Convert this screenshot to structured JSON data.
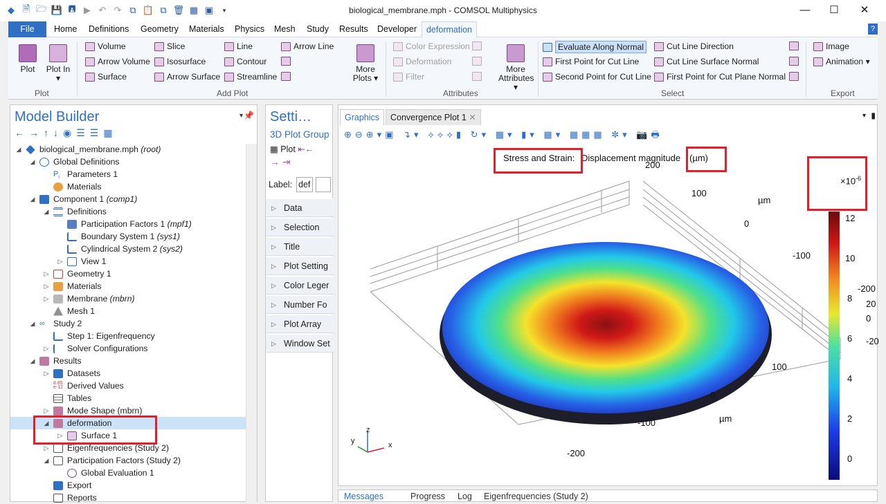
{
  "window": {
    "title": "biological_membrane.mph - COMSOL Multiphysics",
    "minimize": "—",
    "maximize": "☐",
    "close": "✕"
  },
  "menu": {
    "file": "File",
    "tabs": [
      "Home",
      "Definitions",
      "Geometry",
      "Materials",
      "Physics",
      "Mesh",
      "Study",
      "Results",
      "Developer"
    ],
    "active": "deformation",
    "help": "?"
  },
  "ribbon": {
    "plot_group": {
      "label": "Plot",
      "plot": "Plot",
      "plot_in": "Plot In ▾"
    },
    "add_plot": {
      "label": "Add Plot",
      "items": [
        "Volume",
        "Arrow Volume",
        "Surface",
        "Slice",
        "Isosurface",
        "Arrow Surface",
        "Line",
        "Contour",
        "Streamline",
        "Arrow Line"
      ],
      "more": "More Plots ▾"
    },
    "attributes": {
      "label": "Attributes",
      "color_expression": "Color Expression",
      "deformation": "Deformation",
      "filter": "Filter",
      "more": "More Attributes ▾"
    },
    "select": {
      "label": "Select",
      "evaluate_along_normal": "Evaluate Along Normal",
      "first_point_cut_line": "First Point for Cut Line",
      "second_point_cut_line": "Second Point for Cut Line",
      "cut_line_direction": "Cut Line Direction",
      "cut_line_surface_normal": "Cut Line Surface Normal",
      "first_point_cut_plane_normal": "First Point for Cut Plane Normal"
    },
    "export": {
      "label": "Export",
      "image": "Image",
      "animation": "Animation ▾"
    }
  },
  "model_builder": {
    "title": "Model Builder",
    "tree": [
      {
        "label": "biological_membrane.mph",
        "tag": "(root)"
      },
      {
        "label": "Global Definitions",
        "tag": ""
      },
      {
        "label": "Parameters 1",
        "tag": ""
      },
      {
        "label": "Materials",
        "tag": ""
      },
      {
        "label": "Component 1",
        "tag": "(comp1)"
      },
      {
        "label": "Definitions",
        "tag": ""
      },
      {
        "label": "Participation Factors 1",
        "tag": "(mpf1)"
      },
      {
        "label": "Boundary System 1",
        "tag": "(sys1)"
      },
      {
        "label": "Cylindrical System 2",
        "tag": "(sys2)"
      },
      {
        "label": "View 1",
        "tag": ""
      },
      {
        "label": "Geometry 1",
        "tag": ""
      },
      {
        "label": "Materials",
        "tag": ""
      },
      {
        "label": "Membrane",
        "tag": "(mbrn)"
      },
      {
        "label": "Mesh 1",
        "tag": ""
      },
      {
        "label": "Study 2",
        "tag": ""
      },
      {
        "label": "Step 1: Eigenfrequency",
        "tag": ""
      },
      {
        "label": "Solver Configurations",
        "tag": ""
      },
      {
        "label": "Results",
        "tag": ""
      },
      {
        "label": "Datasets",
        "tag": ""
      },
      {
        "label": "Derived Values",
        "tag": ""
      },
      {
        "label": "Tables",
        "tag": ""
      },
      {
        "label": "Mode Shape (mbrn)",
        "tag": ""
      },
      {
        "label": "deformation",
        "tag": ""
      },
      {
        "label": "Surface 1",
        "tag": ""
      },
      {
        "label": "Eigenfrequencies (Study 2)",
        "tag": ""
      },
      {
        "label": "Participation Factors (Study 2)",
        "tag": ""
      },
      {
        "label": "Global Evaluation 1",
        "tag": ""
      },
      {
        "label": "Export",
        "tag": ""
      },
      {
        "label": "Reports",
        "tag": ""
      }
    ]
  },
  "settings": {
    "title": "Setti…",
    "subtitle": "3D Plot Group",
    "plot_btn": "Plot",
    "label_caption": "Label:",
    "label_value": "def",
    "sections": [
      "Data",
      "Selection",
      "Title",
      "Plot Setting",
      "Color Leger",
      "Number Fo",
      "Plot Array",
      "Window Set"
    ]
  },
  "graphics": {
    "tabs": [
      "Graphics",
      "Convergence Plot 1"
    ],
    "plot_title_prefix": "Stress and Strain:",
    "plot_title_main": "Displacement magnitude",
    "plot_title_unit": "(µm)",
    "colorbar_exponent": "×10",
    "colorbar_exponent_power": "-6",
    "colorbar_ticks": [
      "12",
      "10",
      "8",
      "6",
      "4",
      "2",
      "0"
    ],
    "axis_labels": {
      "back_200": "200",
      "back_100": "100",
      "back_0": "0",
      "back_m100": "-100",
      "back_um": "µm",
      "front_100": "100",
      "front_0": "0",
      "front_m100": "-100",
      "front_m200": "-200",
      "front_um": "µm",
      "side_m200": "-200",
      "side_20": "20",
      "side_0": "0",
      "side_m20": "-20"
    },
    "triad": {
      "x": "x",
      "y": "y",
      "z": "z"
    }
  },
  "bottom_tabs": [
    "Messages",
    "Progress",
    "Log",
    "Eigenfrequencies (Study 2)"
  ],
  "colors": {
    "accent": "#2f6fc4",
    "highlight": "#e0202a"
  }
}
